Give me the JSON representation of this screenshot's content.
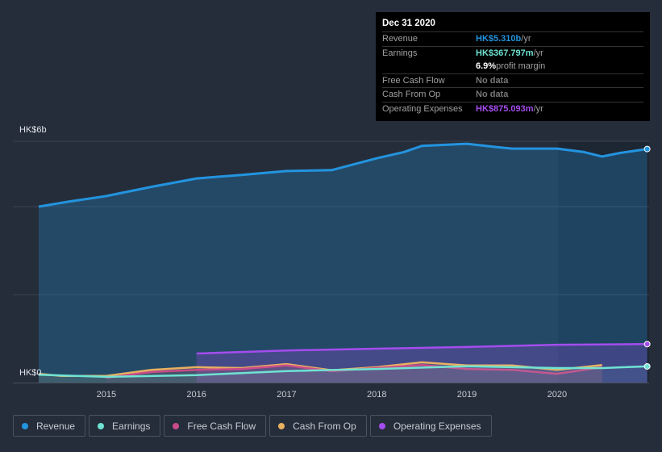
{
  "tooltip": {
    "date": "Dec 31 2020",
    "rows": [
      {
        "label": "Revenue",
        "value": "HK$5.310b",
        "unit": " /yr",
        "color": "#2394df"
      },
      {
        "label": "Earnings",
        "value": "HK$367.797m",
        "unit": " /yr",
        "color": "#6fe3d3"
      },
      {
        "label": "",
        "value": "6.9%",
        "unit": " profit margin",
        "color": "#ffffff"
      },
      {
        "label": "Free Cash Flow",
        "value": "No data",
        "unit": "",
        "color": "#777777"
      },
      {
        "label": "Cash From Op",
        "value": "No data",
        "unit": "",
        "color": "#777777"
      },
      {
        "label": "Operating Expenses",
        "value": "HK$875.093m",
        "unit": " /yr",
        "color": "#a44ded"
      }
    ]
  },
  "chart_data": {
    "type": "line",
    "ylabel_top": "HK$6b",
    "ylabel_bottom": "HK$0",
    "ylim": [
      0,
      6
    ],
    "xlim": [
      2014.25,
      2021.0
    ],
    "xticks": [
      "2015",
      "2016",
      "2017",
      "2018",
      "2019",
      "2020"
    ],
    "series": [
      {
        "name": "Revenue",
        "color": "#2394df",
        "x": [
          2014.25,
          2014.6,
          2015,
          2015.5,
          2016,
          2016.5,
          2017,
          2017.5,
          2018,
          2018.3,
          2018.5,
          2019,
          2019.3,
          2019.5,
          2020,
          2020.3,
          2020.5,
          2020.7,
          2021
        ],
        "values": [
          4.0,
          4.12,
          4.24,
          4.45,
          4.64,
          4.72,
          4.81,
          4.83,
          5.1,
          5.24,
          5.38,
          5.43,
          5.36,
          5.32,
          5.32,
          5.24,
          5.14,
          5.22,
          5.31
        ]
      },
      {
        "name": "Earnings",
        "color": "#6fe3d3",
        "x": [
          2014.25,
          2015,
          2016,
          2017,
          2018,
          2019,
          2020,
          2020.5,
          2021
        ],
        "values": [
          0.18,
          0.13,
          0.17,
          0.26,
          0.31,
          0.37,
          0.33,
          0.33,
          0.368
        ]
      },
      {
        "name": "Free Cash Flow",
        "color": "#c94c8a",
        "x": [
          2015,
          2015.5,
          2016,
          2016.5,
          2017,
          2017.5,
          2018,
          2018.5,
          2019,
          2019.5,
          2020,
          2020.5
        ],
        "values": [
          0.11,
          0.24,
          0.29,
          0.31,
          0.39,
          0.26,
          0.33,
          0.4,
          0.31,
          0.29,
          0.2,
          0.35
        ]
      },
      {
        "name": "Cash From Op",
        "color": "#e8b061",
        "x": [
          2014.25,
          2014.5,
          2015,
          2015.5,
          2016,
          2016.5,
          2017,
          2017.5,
          2018,
          2018.5,
          2019,
          2019.5,
          2020,
          2020.5
        ],
        "values": [
          0.2,
          0.15,
          0.15,
          0.29,
          0.35,
          0.33,
          0.42,
          0.28,
          0.35,
          0.46,
          0.39,
          0.39,
          0.29,
          0.4
        ]
      },
      {
        "name": "Operating Expenses",
        "color": "#a44ded",
        "x": [
          2016,
          2017,
          2018,
          2019,
          2020,
          2021
        ],
        "values": [
          0.66,
          0.73,
          0.77,
          0.81,
          0.86,
          0.875
        ]
      }
    ]
  }
}
